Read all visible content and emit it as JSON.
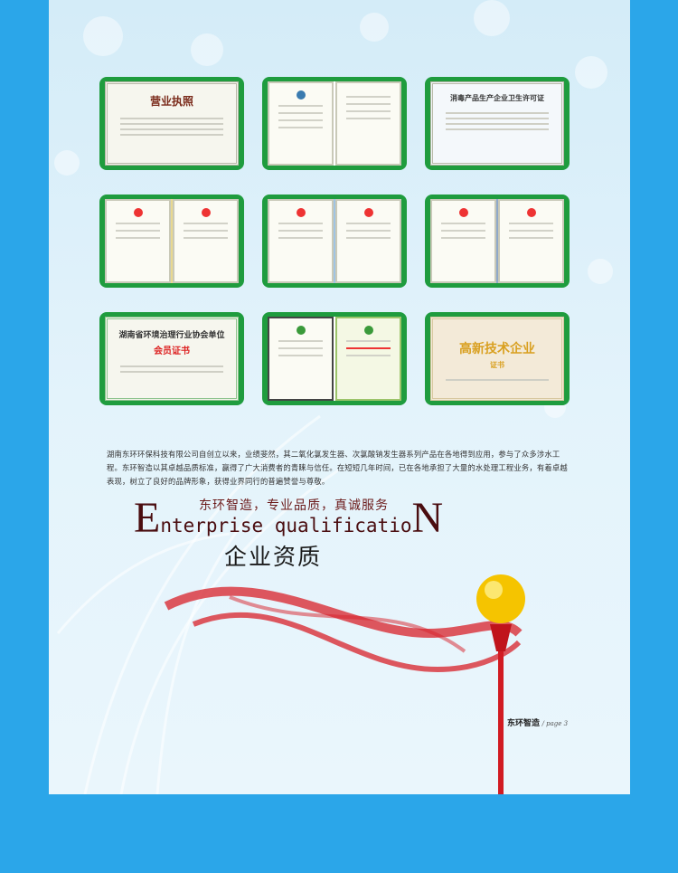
{
  "certificates": [
    {
      "title": "营业执照",
      "kind": "business-license"
    },
    {
      "title": "",
      "kind": "sanitation-approval"
    },
    {
      "title": "消毒产品生产企业卫生许可证",
      "kind": "hygiene-permit"
    },
    {
      "title": "",
      "kind": "ohs-certificate"
    },
    {
      "title": "",
      "kind": "environmental-certificate"
    },
    {
      "title": "",
      "kind": "quality-certificate"
    },
    {
      "title": "湖南省环境治理行业协会单位",
      "subtitle": "会员证书",
      "kind": "membership"
    },
    {
      "title": "",
      "subtitle": "",
      "kind": "service-capability"
    },
    {
      "title": "高新技术企业",
      "subtitle": "证书",
      "kind": "high-tech"
    }
  ],
  "intro": "湖南东环环保科技有限公司自创立以来，业绩斐然，其二氧化氯发生器、次氯酸钠发生器系列产品在各地得到应用，参与了众多涉水工程。东环智造以其卓越品质标准，赢得了广大消费者的青睐与信任。在短短几年时间，已在各地承担了大量的水处理工程业务，有着卓越表现，树立了良好的品牌形象，获得业界同行的普遍赞誉与尊敬。",
  "slogan": "东环智造，专业品质，真诚服务",
  "english_title": {
    "first": "E",
    "middle": "nterprise qualificatio",
    "last": "N"
  },
  "chinese_title": "企业资质",
  "footer": {
    "brand": "东环智造",
    "page": "/ page 3"
  },
  "colors": {
    "outer": "#2ba6e9",
    "card_border": "#1f9c3e",
    "title": "#4a0d10",
    "ribbon": "#d8202a",
    "lamp": "#f5c400"
  }
}
